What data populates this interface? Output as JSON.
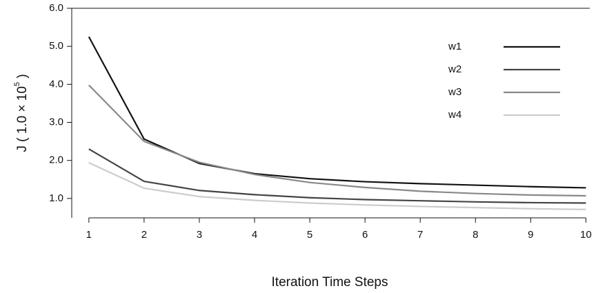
{
  "chart_data": {
    "type": "line",
    "x_label": "Iteration Time Steps",
    "y_label": "J ( 1.0 × 10",
    "y_label_exponent": "5",
    "y_label_end": " )",
    "x": [
      1,
      2,
      3,
      4,
      5,
      6,
      7,
      8,
      9,
      10
    ],
    "xlim": [
      0.69,
      10.07
    ],
    "xticks": [
      1,
      2,
      3,
      4,
      5,
      6,
      7,
      8,
      9,
      10
    ],
    "ylim": [
      0.49,
      6.0
    ],
    "yticks": [
      {
        "value": 1,
        "label": "1.0"
      },
      {
        "value": 2,
        "label": "2.0"
      },
      {
        "value": 3,
        "label": "3.0"
      },
      {
        "value": 4,
        "label": "4.0"
      },
      {
        "value": 5,
        "label": "5.0"
      },
      {
        "value": 6,
        "label": "6.0"
      }
    ],
    "legend": "top-right",
    "series": [
      {
        "name": "w1",
        "color": "#111111",
        "values": [
          5.25,
          2.56,
          1.92,
          1.65,
          1.52,
          1.44,
          1.39,
          1.35,
          1.31,
          1.28
        ]
      },
      {
        "name": "w2",
        "color": "#444444",
        "values": [
          2.3,
          1.45,
          1.21,
          1.1,
          1.02,
          0.97,
          0.94,
          0.91,
          0.89,
          0.88
        ]
      },
      {
        "name": "w3",
        "color": "#888888",
        "values": [
          3.98,
          2.5,
          1.95,
          1.63,
          1.42,
          1.29,
          1.19,
          1.13,
          1.09,
          1.07
        ]
      },
      {
        "name": "w4",
        "color": "#cccccc",
        "values": [
          1.94,
          1.27,
          1.05,
          0.95,
          0.88,
          0.83,
          0.79,
          0.76,
          0.73,
          0.71
        ]
      }
    ]
  }
}
